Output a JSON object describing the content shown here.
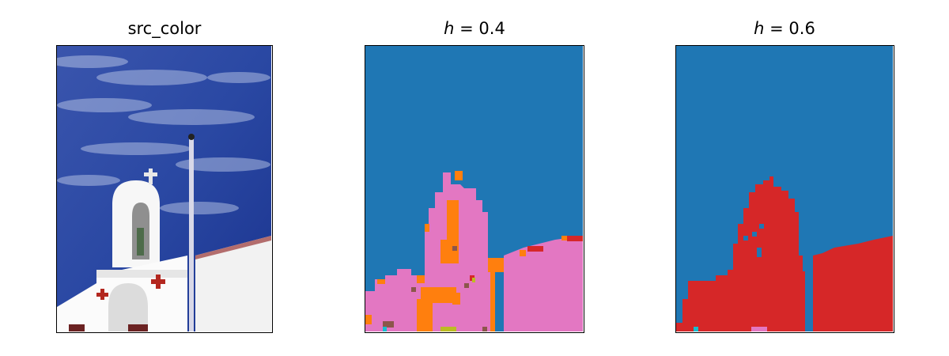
{
  "panels": [
    {
      "title": "src_color"
    },
    {
      "title_var": "h",
      "title_rest": " = 0.4"
    },
    {
      "title_var": "h",
      "title_rest": " = 0.6"
    }
  ],
  "colors": {
    "sky_dark": "#1f3c97",
    "sky_light": "#6f86c5",
    "building_white": "#f4f4f4",
    "cross_red": "#b3271f",
    "seg_blue": "#1f77b4",
    "seg_orange": "#ff7f0e",
    "seg_pink": "#e377c2",
    "seg_red": "#d62728",
    "seg_brown": "#8c564b",
    "seg_olive": "#bcbd22",
    "seg_cyan": "#17becf"
  }
}
